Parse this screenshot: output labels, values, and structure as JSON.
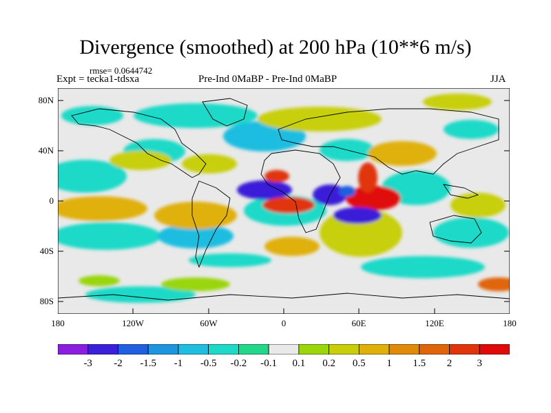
{
  "title": "Divergence (smoothed) at 200 hPa (10**6 m/s)",
  "rmse_label": "rmse= 0.0644742",
  "experiment_label": "Expt = tecka1-tdsxa",
  "center_label": "Pre-Ind 0MaBP - Pre-Ind    0MaBP",
  "season_label": "JJA",
  "lat_ticks": [
    "80N",
    "40N",
    "0",
    "40S",
    "80S"
  ],
  "lon_ticks": [
    "180",
    "120W",
    "60W",
    "0",
    "60E",
    "120E",
    "180"
  ],
  "colorbar": {
    "colors": [
      "#8a1fe0",
      "#3b1fd9",
      "#1f5fe0",
      "#1f95e0",
      "#1fbde0",
      "#1fd9c8",
      "#22d68a",
      "#e9e9e9",
      "#9ad60a",
      "#c8cf0a",
      "#e0b00a",
      "#e08a0a",
      "#e0650a",
      "#e0340a",
      "#e00a0a"
    ],
    "labels": [
      "-3",
      "-2",
      "-1.5",
      "-1",
      "-0.5",
      "-0.2",
      "-0.1",
      "0.1",
      "0.2",
      "0.5",
      "1",
      "1.5",
      "2",
      "3"
    ]
  }
}
